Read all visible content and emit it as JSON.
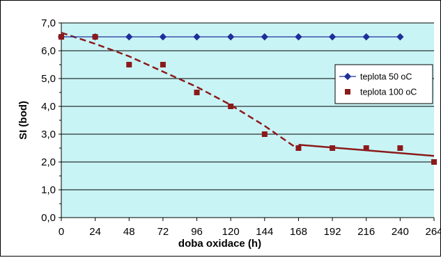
{
  "chart_data": {
    "type": "scatter",
    "xlabel": "doba oxidace (h)",
    "ylabel": "SI (bod)",
    "xlim": [
      0,
      264
    ],
    "ylim": [
      0,
      7
    ],
    "x_ticks": [
      "0",
      "24",
      "48",
      "72",
      "96",
      "120",
      "144",
      "168",
      "192",
      "216",
      "240",
      "264"
    ],
    "y_ticks": [
      "0,0",
      "1,0",
      "2,0",
      "3,0",
      "4,0",
      "5,0",
      "6,0",
      "7,0"
    ],
    "grid": "horizontal",
    "legend_position": "right",
    "series": [
      {
        "name": "teplota 50 oC",
        "style": "line-marker",
        "marker": "diamond",
        "color": "#1f2f9a",
        "points": [
          [
            0,
            6.5
          ],
          [
            24,
            6.5
          ],
          [
            48,
            6.5
          ],
          [
            72,
            6.5
          ],
          [
            96,
            6.5
          ],
          [
            120,
            6.5
          ],
          [
            144,
            6.5
          ],
          [
            168,
            6.5
          ],
          [
            192,
            6.5
          ],
          [
            216,
            6.5
          ],
          [
            240,
            6.5
          ]
        ]
      },
      {
        "name": "teplota 100 oC",
        "style": "marker",
        "marker": "square",
        "color": "#8b1a1a",
        "points": [
          [
            0,
            6.5
          ],
          [
            24,
            6.5
          ],
          [
            48,
            5.5
          ],
          [
            72,
            5.5
          ],
          [
            96,
            4.5
          ],
          [
            120,
            4.0
          ],
          [
            144,
            3.0
          ],
          [
            168,
            2.5
          ],
          [
            192,
            2.5
          ],
          [
            216,
            2.5
          ],
          [
            240,
            2.5
          ],
          [
            264,
            2.0
          ]
        ]
      }
    ],
    "trendlines": [
      {
        "style": "dashed",
        "color": "#8b1a1a",
        "points": [
          [
            0,
            6.65
          ],
          [
            24,
            6.25
          ],
          [
            48,
            5.8
          ],
          [
            72,
            5.25
          ],
          [
            96,
            4.7
          ],
          [
            120,
            4.05
          ],
          [
            144,
            3.3
          ],
          [
            168,
            2.45
          ]
        ]
      },
      {
        "style": "solid",
        "color": "#8b1a1a",
        "points": [
          [
            168,
            2.62
          ],
          [
            264,
            2.22
          ]
        ]
      }
    ],
    "colors": {
      "plot_background": "#c9f4f6",
      "grid": "#000000"
    }
  }
}
